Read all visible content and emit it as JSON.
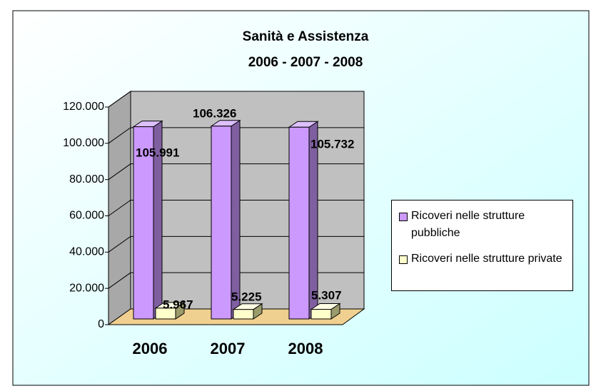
{
  "chart_data": {
    "type": "bar3d",
    "title": "Sanità e Assistenza",
    "subtitle": "2006 - 2007 - 2008",
    "categories": [
      "2006",
      "2007",
      "2008"
    ],
    "series": [
      {
        "name": "Ricoveri nelle strutture pubbliche",
        "color": "#cc99ff",
        "values": [
          105991,
          106326,
          105732
        ],
        "value_labels": [
          "105.991",
          "106.326",
          "105.732"
        ]
      },
      {
        "name": "Ricoveri nelle strutture private",
        "color": "#ffffcc",
        "values": [
          5967,
          5225,
          5307
        ],
        "value_labels": [
          "5.967",
          "5.225",
          "5.307"
        ]
      }
    ],
    "ylim": [
      0,
      120000
    ],
    "yticks": [
      0,
      {
        "value": 20000,
        "label": "20.000"
      },
      {
        "value": 40000,
        "label": "40.000"
      },
      {
        "value": 60000,
        "label": "60.000"
      },
      {
        "value": 80000,
        "label": "80.000"
      },
      {
        "value": 100000,
        "label": "100.000"
      },
      {
        "value": 120000,
        "label": "120.000"
      }
    ],
    "grid": true,
    "legend": "right"
  }
}
